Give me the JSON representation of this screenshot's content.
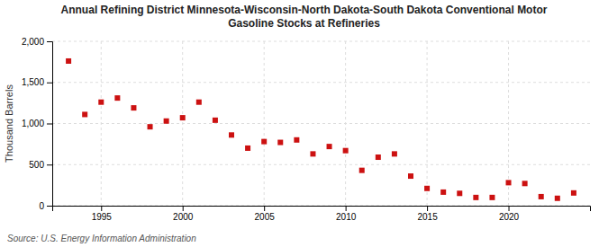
{
  "chart_data": {
    "type": "scatter",
    "title": "Annual Refining District Minnesota-Wisconsin-North Dakota-South Dakota Conventional Motor\nGasoline Stocks at Refineries",
    "ylabel": "Thousand Barrels",
    "source": "Source: U.S. Energy Information Administration",
    "x": [
      1993,
      1994,
      1995,
      1996,
      1997,
      1998,
      1999,
      2000,
      2001,
      2002,
      2003,
      2004,
      2005,
      2006,
      2007,
      2008,
      2009,
      2010,
      2011,
      2012,
      2013,
      2014,
      2015,
      2016,
      2017,
      2018,
      2019,
      2020,
      2021,
      2022,
      2023,
      2024
    ],
    "values": [
      1760,
      1110,
      1260,
      1310,
      1190,
      960,
      1030,
      1070,
      1260,
      1040,
      860,
      700,
      780,
      770,
      800,
      630,
      720,
      670,
      430,
      590,
      630,
      360,
      210,
      165,
      150,
      100,
      100,
      280,
      270,
      110,
      90,
      155
    ],
    "color": "#cc1111",
    "marker": "square",
    "grid": true,
    "xlim": [
      1992,
      2025
    ],
    "xticks": [
      1995,
      2000,
      2005,
      2010,
      2015,
      2020
    ],
    "ylim": [
      0,
      2000
    ],
    "yticks": [
      0,
      500,
      {
        "value": 1000,
        "label": "1,000"
      },
      {
        "value": 1500,
        "label": "1,500"
      },
      {
        "value": 2000,
        "label": "2,000"
      }
    ]
  }
}
